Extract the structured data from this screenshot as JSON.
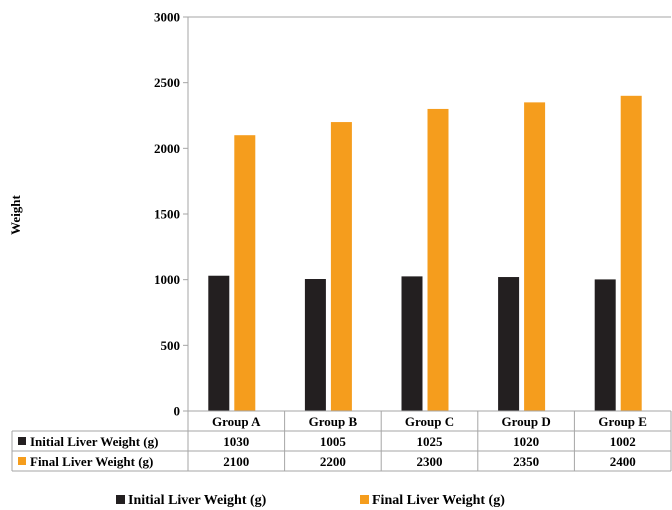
{
  "chart_data": {
    "type": "bar",
    "title": "",
    "ylabel": "Weight",
    "xlabel": "",
    "ylim": [
      0,
      3000
    ],
    "yticks": [
      0,
      500,
      1000,
      1500,
      2000,
      2500,
      3000
    ],
    "grid": false,
    "categories": [
      "Group A",
      "Group B",
      "Group C",
      "Group D",
      "Group E"
    ],
    "series": [
      {
        "name": "Initial Liver Weight (g)",
        "color": "#231f20",
        "values": [
          1030,
          1005,
          1025,
          1020,
          1002
        ]
      },
      {
        "name": "Final Liver Weight (g)",
        "color": "#f59d1d",
        "values": [
          2100,
          2200,
          2300,
          2350,
          2400
        ]
      }
    ],
    "data_table": true,
    "legend_position": "bottom"
  }
}
